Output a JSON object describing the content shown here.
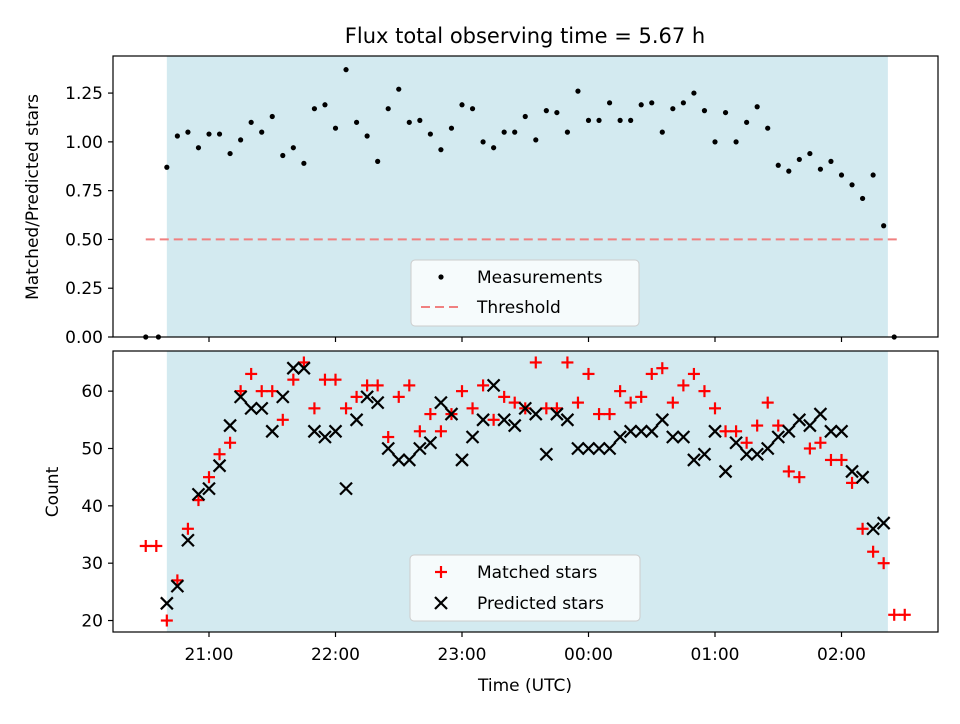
{
  "chart_data": [
    {
      "type": "scatter",
      "title": "Flux total observing time = 5.67 h",
      "ylabel": "Matched/Predicted stars",
      "xlabel": "",
      "ylim": [
        0,
        1.44
      ],
      "yticks": [
        "0.00",
        "0.25",
        "0.50",
        "0.75",
        "1.00",
        "1.25"
      ],
      "shaded_band_x": [
        "20:40",
        "02:22"
      ],
      "shade_color": "#d3eaf0",
      "threshold": {
        "name": "Threshold",
        "value": 0.5,
        "x_range": [
          "20:30",
          "02:28"
        ],
        "color": "#f08080"
      },
      "legend": {
        "placement": "lower center",
        "entries": [
          "Measurements",
          "Threshold"
        ]
      },
      "series": [
        {
          "name": "Measurements",
          "color": "#000000",
          "x": [
            "20:30",
            "20:36",
            "20:40",
            "20:45",
            "20:50",
            "20:55",
            "21:00",
            "21:05",
            "21:10",
            "21:15",
            "21:20",
            "21:25",
            "21:30",
            "21:35",
            "21:40",
            "21:45",
            "21:50",
            "21:55",
            "22:00",
            "22:05",
            "22:10",
            "22:15",
            "22:20",
            "22:25",
            "22:30",
            "22:35",
            "22:40",
            "22:45",
            "22:50",
            "22:55",
            "23:00",
            "23:05",
            "23:10",
            "23:15",
            "23:20",
            "23:25",
            "23:30",
            "23:35",
            "23:40",
            "23:45",
            "23:50",
            "23:55",
            "00:00",
            "00:05",
            "00:10",
            "00:15",
            "00:20",
            "00:25",
            "00:30",
            "00:35",
            "00:40",
            "00:45",
            "00:50",
            "00:55",
            "01:00",
            "01:05",
            "01:10",
            "01:15",
            "01:20",
            "01:25",
            "01:30",
            "01:35",
            "01:40",
            "01:45",
            "01:50",
            "01:55",
            "02:00",
            "02:05",
            "02:10",
            "02:15",
            "02:20",
            "02:25"
          ],
          "y": [
            0.0,
            0.0,
            0.87,
            1.03,
            1.05,
            0.97,
            1.04,
            1.04,
            0.94,
            1.01,
            1.1,
            1.05,
            1.13,
            0.93,
            0.97,
            0.89,
            1.17,
            1.19,
            1.07,
            1.37,
            1.1,
            1.03,
            0.9,
            1.17,
            1.27,
            1.1,
            1.11,
            1.04,
            0.96,
            1.07,
            1.19,
            1.17,
            1.0,
            0.97,
            1.05,
            1.05,
            1.13,
            1.01,
            1.16,
            1.15,
            1.05,
            1.26,
            1.11,
            1.11,
            1.2,
            1.11,
            1.11,
            1.19,
            1.2,
            1.05,
            1.17,
            1.2,
            1.25,
            1.16,
            1.0,
            1.15,
            1.0,
            1.1,
            1.18,
            1.07,
            0.88,
            0.85,
            0.91,
            0.94,
            0.86,
            0.9,
            0.83,
            0.78,
            0.71,
            0.83,
            0.57,
            0.0
          ]
        }
      ]
    },
    {
      "type": "scatter",
      "title": "",
      "ylabel": "Count",
      "xlabel": "Time (UTC)",
      "ylim": [
        18,
        67
      ],
      "yticks": [
        "20",
        "30",
        "40",
        "50",
        "60"
      ],
      "xticks": [
        "21:00",
        "22:00",
        "23:00",
        "00:00",
        "01:00",
        "02:00"
      ],
      "shaded_band_x": [
        "20:40",
        "02:22"
      ],
      "legend": {
        "placement": "lower center",
        "entries": [
          "Matched stars",
          "Predicted stars"
        ]
      },
      "series": [
        {
          "name": "Matched stars",
          "marker": "+",
          "color": "#ff0000",
          "x": [
            "20:30",
            "20:35",
            "20:40",
            "20:45",
            "20:50",
            "20:55",
            "21:00",
            "21:05",
            "21:10",
            "21:15",
            "21:20",
            "21:25",
            "21:30",
            "21:35",
            "21:40",
            "21:45",
            "21:50",
            "21:55",
            "22:00",
            "22:05",
            "22:10",
            "22:15",
            "22:20",
            "22:25",
            "22:30",
            "22:35",
            "22:40",
            "22:45",
            "22:50",
            "22:55",
            "23:00",
            "23:05",
            "23:10",
            "23:15",
            "23:20",
            "23:25",
            "23:30",
            "23:35",
            "23:40",
            "23:45",
            "23:50",
            "23:55",
            "00:00",
            "00:05",
            "00:10",
            "00:15",
            "00:20",
            "00:25",
            "00:30",
            "00:35",
            "00:40",
            "00:45",
            "00:50",
            "00:55",
            "01:00",
            "01:05",
            "01:10",
            "01:15",
            "01:20",
            "01:25",
            "01:30",
            "01:35",
            "01:40",
            "01:45",
            "01:50",
            "01:55",
            "02:00",
            "02:05",
            "02:10",
            "02:15",
            "02:20",
            "02:25"
          ],
          "y": [
            33,
            33,
            20,
            27,
            36,
            41,
            45,
            49,
            51,
            60,
            63,
            60,
            60,
            55,
            62,
            65,
            57,
            62,
            62,
            57,
            59,
            61,
            61,
            52,
            59,
            61,
            53,
            56,
            53,
            56,
            60,
            57,
            61,
            55,
            59,
            58,
            57,
            65,
            57,
            57,
            65,
            58,
            63,
            56,
            56,
            60,
            58,
            59,
            63,
            64,
            58,
            61,
            63,
            60,
            57,
            53,
            53,
            51,
            54,
            58,
            54,
            46,
            45,
            50,
            51,
            48,
            48,
            44,
            36,
            32,
            30,
            21
          ],
          "x_extra": [
            "02:30"
          ],
          "y_extra": [
            21
          ]
        },
        {
          "name": "Predicted stars",
          "marker": "x",
          "color": "#000000",
          "x": [
            "20:40",
            "20:45",
            "20:50",
            "20:55",
            "21:00",
            "21:05",
            "21:10",
            "21:15",
            "21:20",
            "21:25",
            "21:30",
            "21:35",
            "21:40",
            "21:45",
            "21:50",
            "21:55",
            "22:00",
            "22:05",
            "22:10",
            "22:15",
            "22:20",
            "22:25",
            "22:30",
            "22:35",
            "22:40",
            "22:45",
            "22:50",
            "22:55",
            "23:00",
            "23:05",
            "23:10",
            "23:15",
            "23:20",
            "23:25",
            "23:30",
            "23:35",
            "23:40",
            "23:45",
            "23:50",
            "23:55",
            "00:00",
            "00:05",
            "00:10",
            "00:15",
            "00:20",
            "00:25",
            "00:30",
            "00:35",
            "00:40",
            "00:45",
            "00:50",
            "00:55",
            "01:00",
            "01:05",
            "01:10",
            "01:15",
            "01:20",
            "01:25",
            "01:30",
            "01:35",
            "01:40",
            "01:45",
            "01:50",
            "01:55",
            "02:00",
            "02:05",
            "02:10",
            "02:15",
            "02:20"
          ],
          "y": [
            23,
            26,
            34,
            42,
            43,
            47,
            54,
            59,
            57,
            57,
            53,
            59,
            64,
            64,
            53,
            52,
            53,
            43,
            55,
            59,
            58,
            50,
            48,
            48,
            50,
            51,
            58,
            56,
            48,
            52,
            55,
            61,
            55,
            54,
            57,
            56,
            49,
            56,
            55,
            50,
            50,
            50,
            50,
            52,
            53,
            53,
            53,
            55,
            52,
            52,
            48,
            49,
            53,
            46,
            51,
            49,
            49,
            50,
            52,
            53,
            55,
            54,
            56,
            53,
            53,
            46,
            45,
            36,
            37
          ]
        }
      ]
    }
  ]
}
